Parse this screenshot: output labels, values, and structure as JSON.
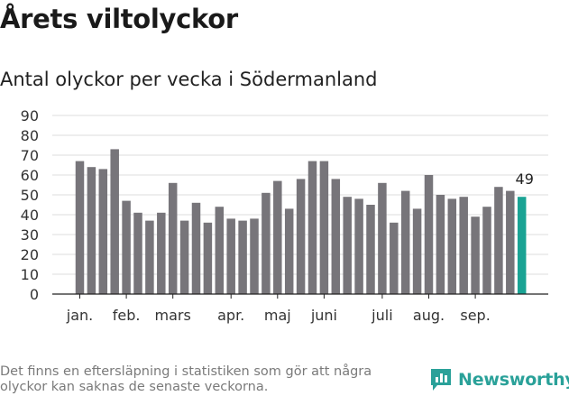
{
  "header": {
    "title": "Årets viltolyckor",
    "subtitle": "Antal olyckor per vecka i Södermanland"
  },
  "footer": {
    "note": "Det finns en eftersläpning i statistiken som gör att några olyckor kan saknas de senaste veckorna.",
    "brand": "Newsworthy"
  },
  "colors": {
    "bar": "#77757a",
    "highlight": "#1aa394",
    "grid": "#dddddd",
    "brand": "#2aa199"
  },
  "chart_data": {
    "type": "bar",
    "title": "Antal olyckor per vecka i Södermanland",
    "xlabel": "",
    "ylabel": "",
    "ylim": [
      0,
      90
    ],
    "yticks": [
      0,
      10,
      20,
      30,
      40,
      50,
      60,
      70,
      80,
      90
    ],
    "grid": true,
    "values": [
      67,
      64,
      63,
      73,
      47,
      41,
      37,
      41,
      56,
      37,
      46,
      36,
      44,
      38,
      37,
      38,
      51,
      57,
      43,
      58,
      67,
      67,
      58,
      49,
      48,
      45,
      56,
      36,
      52,
      43,
      60,
      50,
      48,
      49,
      39,
      44,
      54,
      52,
      49
    ],
    "highlight_index": 38,
    "highlight_label": "49",
    "month_labels": [
      {
        "label": "jan.",
        "week": 1
      },
      {
        "label": "feb.",
        "week": 5
      },
      {
        "label": "mars",
        "week": 9
      },
      {
        "label": "apr.",
        "week": 14
      },
      {
        "label": "maj",
        "week": 18
      },
      {
        "label": "juni",
        "week": 22
      },
      {
        "label": "juli",
        "week": 27
      },
      {
        "label": "aug.",
        "week": 31
      },
      {
        "label": "sep.",
        "week": 35
      }
    ]
  }
}
